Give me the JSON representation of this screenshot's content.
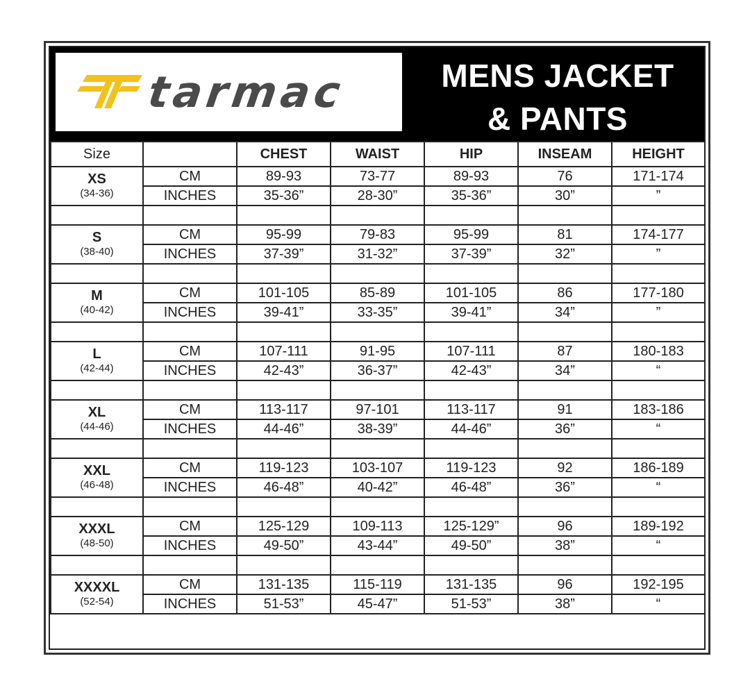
{
  "logo": {
    "text": "tarmac",
    "mark_color": "#F2C21B",
    "text_color": "#4a4a4a"
  },
  "title": {
    "line1": "MENS JACKET",
    "line2": "& PANTS"
  },
  "table": {
    "headers": [
      "Size",
      "",
      "CHEST",
      "WAIST",
      "HIP",
      "INSEAM",
      "HEIGHT"
    ],
    "groups": [
      {
        "size": "XS",
        "range": "(34-36)",
        "rows": [
          [
            "CM",
            "89-93",
            "73-77",
            "89-93",
            "76",
            "171-174"
          ],
          [
            "INCHES",
            "35-36”",
            "28-30”",
            "35-36”",
            "30”",
            "”"
          ]
        ]
      },
      {
        "size": "S",
        "range": "(38-40)",
        "rows": [
          [
            "CM",
            "95-99",
            "79-83",
            "95-99",
            "81",
            "174-177"
          ],
          [
            "INCHES",
            "37-39”",
            "31-32”",
            "37-39”",
            "32”",
            "”"
          ]
        ]
      },
      {
        "size": "M",
        "range": "(40-42)",
        "rows": [
          [
            "CM",
            "101-105",
            "85-89",
            "101-105",
            "86",
            "177-180"
          ],
          [
            "INCHES",
            "39-41”",
            "33-35”",
            "39-41”",
            "34”",
            "”"
          ]
        ]
      },
      {
        "size": "L",
        "range": "(42-44)",
        "rows": [
          [
            "CM",
            "107-111",
            "91-95",
            "107-111",
            "87",
            "180-183"
          ],
          [
            "INCHES",
            "42-43”",
            "36-37”",
            "42-43”",
            "34”",
            "“"
          ]
        ]
      },
      {
        "size": "XL",
        "range": "(44-46)",
        "rows": [
          [
            "CM",
            "113-117",
            "97-101",
            "113-117",
            "91",
            "183-186"
          ],
          [
            "INCHES",
            "44-46”",
            "38-39”",
            "44-46”",
            "36”",
            "“"
          ]
        ]
      },
      {
        "size": "XXL",
        "range": "(46-48)",
        "rows": [
          [
            "CM",
            "119-123",
            "103-107",
            "119-123",
            "92",
            "186-189"
          ],
          [
            "INCHES",
            "46-48”",
            "40-42”",
            "46-48”",
            "36”",
            "“"
          ]
        ]
      },
      {
        "size": "XXXL",
        "range": "(48-50)",
        "rows": [
          [
            "CM",
            "125-129",
            "109-113",
            "125-129”",
            "96",
            "189-192"
          ],
          [
            "INCHES",
            "49-50”",
            "43-44”",
            "49-50”",
            "38”",
            "“"
          ]
        ]
      },
      {
        "size": "XXXXL",
        "range": "(52-54)",
        "rows": [
          [
            "CM",
            "131-135",
            "115-119",
            "131-135",
            "96",
            "192-195"
          ],
          [
            "INCHES",
            "51-53”",
            "45-47”",
            "51-53”",
            "38”",
            "“"
          ]
        ]
      }
    ]
  }
}
